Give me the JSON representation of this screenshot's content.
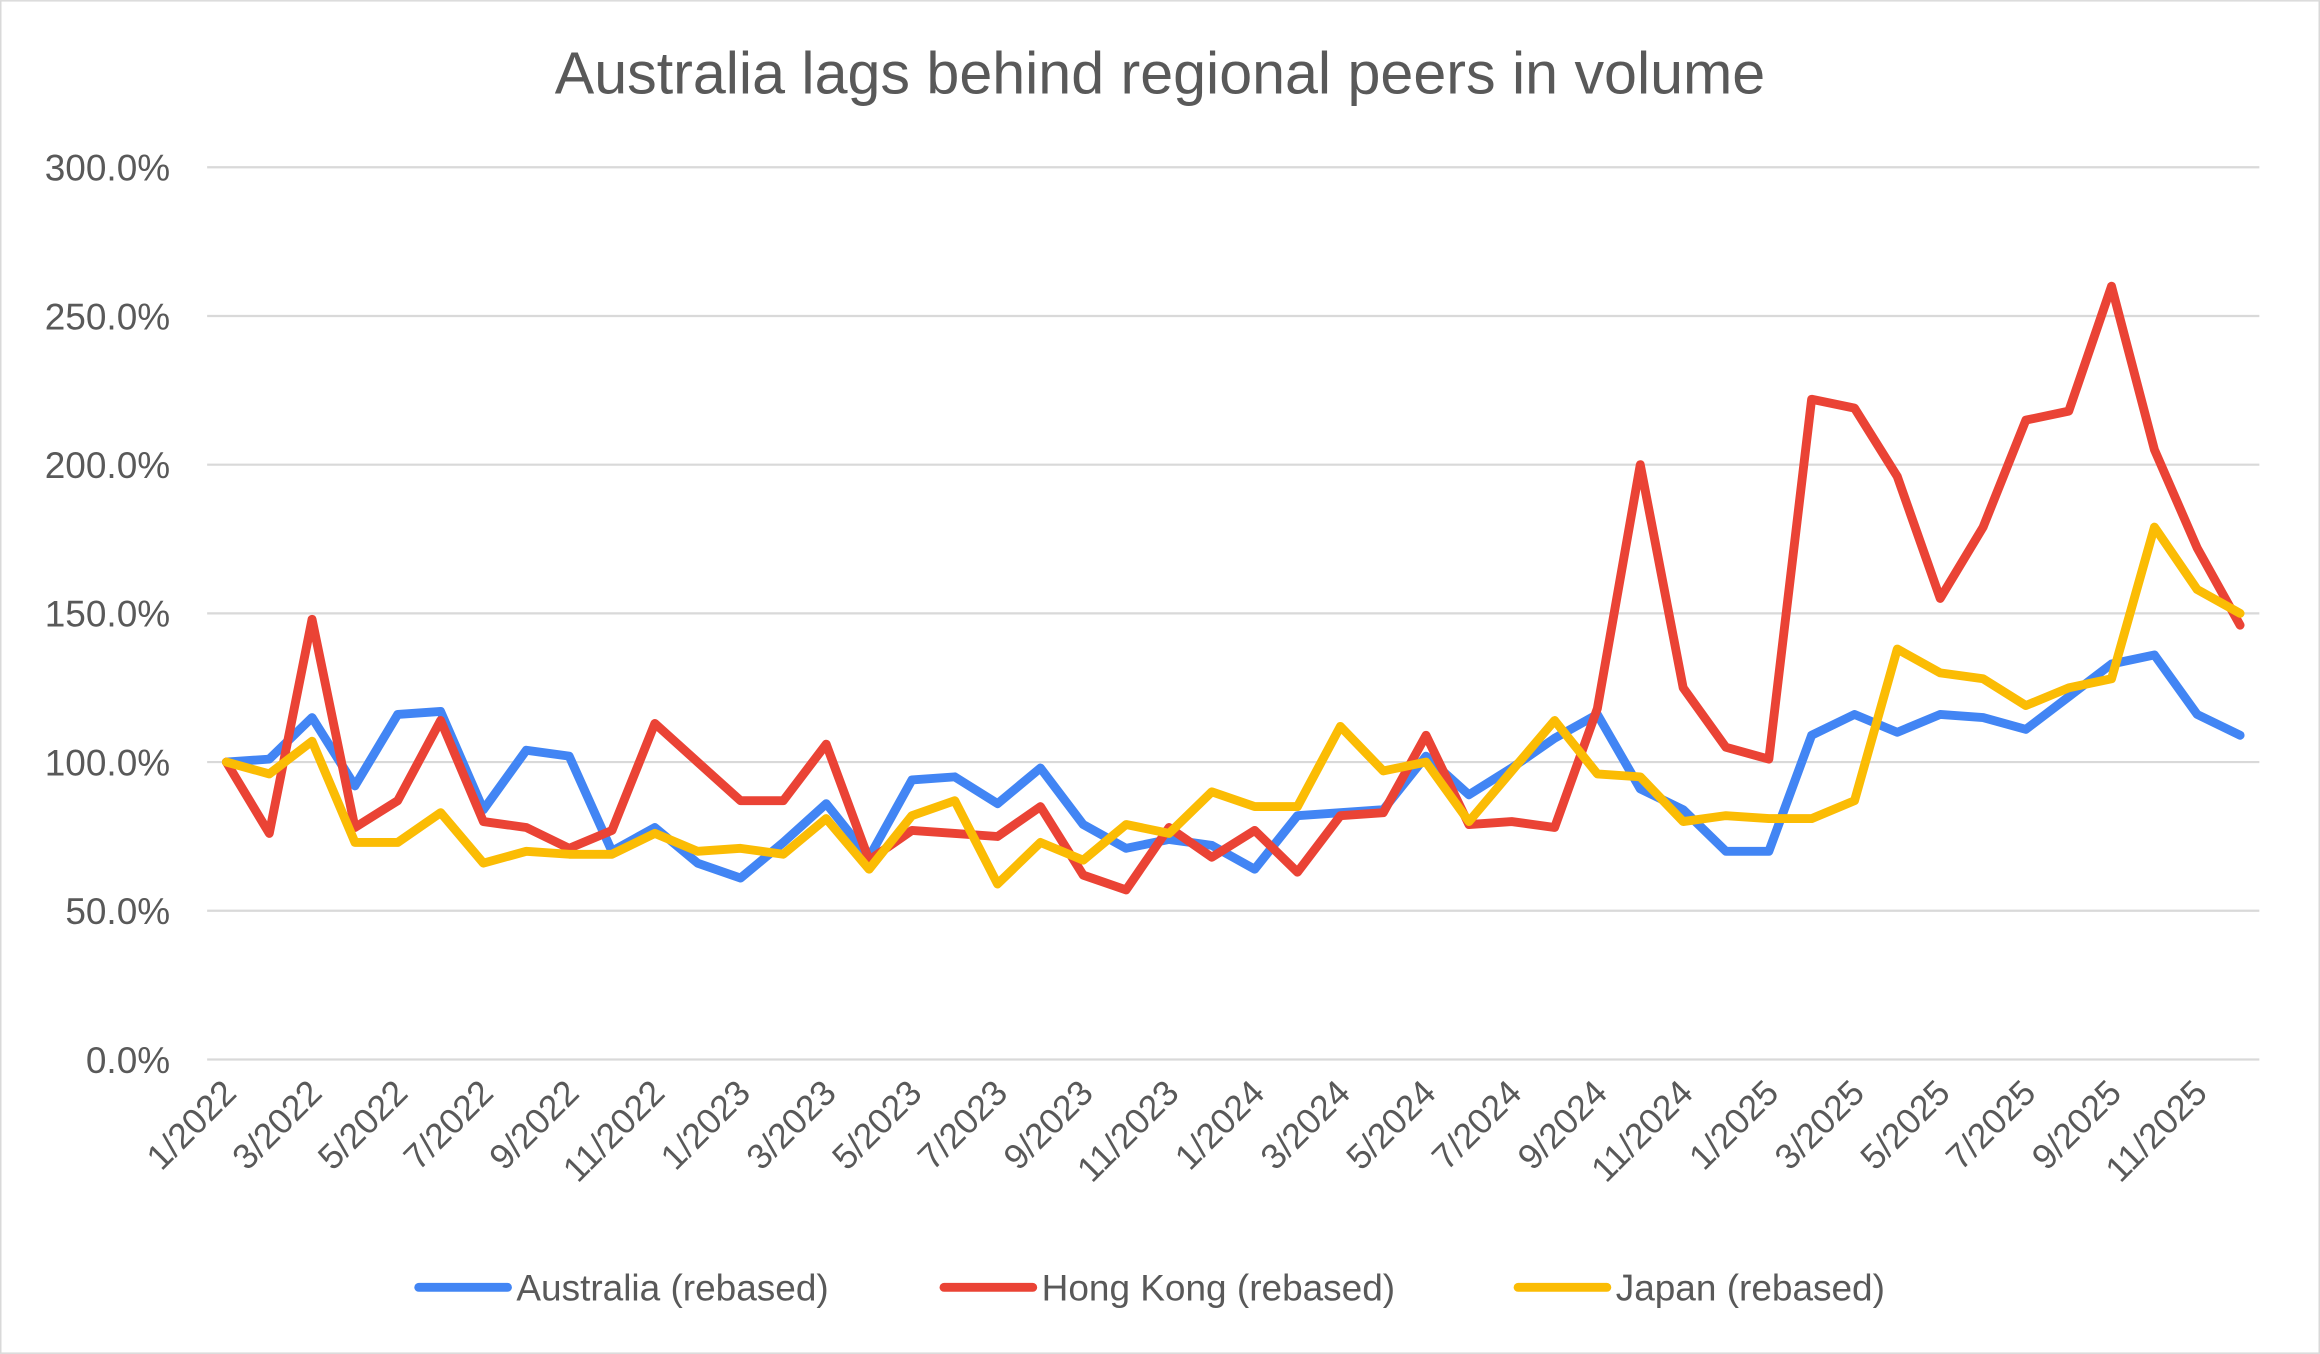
{
  "chart_data": {
    "type": "line",
    "title": "Australia lags behind regional peers in volume",
    "xlabel": "",
    "ylabel": "",
    "ylim": [
      0,
      300
    ],
    "yticks": [
      "0.0%",
      "50.0%",
      "100.0%",
      "150.0%",
      "200.0%",
      "250.0%",
      "300.0%"
    ],
    "ytick_values": [
      0,
      50,
      100,
      150,
      200,
      250,
      300
    ],
    "grid": true,
    "legend": "bottom",
    "categories": [
      "1/2022",
      "2/2022",
      "3/2022",
      "4/2022",
      "5/2022",
      "6/2022",
      "7/2022",
      "8/2022",
      "9/2022",
      "10/2022",
      "11/2022",
      "12/2022",
      "1/2023",
      "2/2023",
      "3/2023",
      "4/2023",
      "5/2023",
      "6/2023",
      "7/2023",
      "8/2023",
      "9/2023",
      "10/2023",
      "11/2023",
      "12/2023",
      "1/2024",
      "2/2024",
      "3/2024",
      "4/2024",
      "5/2024",
      "6/2024",
      "7/2024",
      "8/2024",
      "9/2024",
      "10/2024",
      "11/2024",
      "12/2024",
      "1/2025",
      "2/2025",
      "3/2025",
      "4/2025",
      "5/2025",
      "6/2025",
      "7/2025",
      "8/2025",
      "9/2025",
      "10/2025",
      "11/2025",
      "12/2025"
    ],
    "xtick_labels": [
      "1/2022",
      "3/2022",
      "5/2022",
      "7/2022",
      "9/2022",
      "11/2022",
      "1/2023",
      "3/2023",
      "5/2023",
      "7/2023",
      "9/2023",
      "11/2023",
      "1/2024",
      "3/2024",
      "5/2024",
      "7/2024",
      "9/2024",
      "11/2024",
      "1/2025",
      "3/2025",
      "5/2025",
      "7/2025",
      "9/2025",
      "11/2025"
    ],
    "series": [
      {
        "name": "Australia (rebased)",
        "color": "#4285F4",
        "values": [
          100,
          101,
          115,
          92,
          116,
          117,
          84,
          104,
          102,
          70,
          78,
          66,
          61,
          73,
          86,
          68,
          94,
          95,
          86,
          98,
          79,
          71,
          74,
          72,
          64,
          82,
          83,
          84,
          102,
          89,
          98,
          108,
          116,
          91,
          84,
          70,
          70,
          109,
          116,
          110,
          116,
          115,
          111,
          122,
          133,
          136,
          116,
          109
        ]
      },
      {
        "name": "Hong Kong (rebased)",
        "color": "#EA4335",
        "values": [
          100,
          76,
          148,
          78,
          87,
          114,
          80,
          78,
          71,
          77,
          113,
          100,
          87,
          87,
          106,
          67,
          77,
          76,
          75,
          85,
          62,
          57,
          78,
          68,
          77,
          63,
          82,
          83,
          109,
          79,
          80,
          78,
          118,
          200,
          125,
          105,
          101,
          222,
          219,
          196,
          155,
          179,
          215,
          218,
          260,
          205,
          172,
          146
        ]
      },
      {
        "name": "Japan (rebased)",
        "color": "#FBBC04",
        "values": [
          100,
          96,
          107,
          73,
          73,
          83,
          66,
          70,
          69,
          69,
          76,
          70,
          71,
          69,
          81,
          64,
          82,
          87,
          59,
          73,
          67,
          79,
          76,
          90,
          85,
          85,
          112,
          97,
          100,
          80,
          97,
          114,
          96,
          95,
          80,
          82,
          81,
          81,
          87,
          138,
          130,
          128,
          119,
          125,
          128,
          179,
          158,
          150
        ]
      }
    ]
  }
}
